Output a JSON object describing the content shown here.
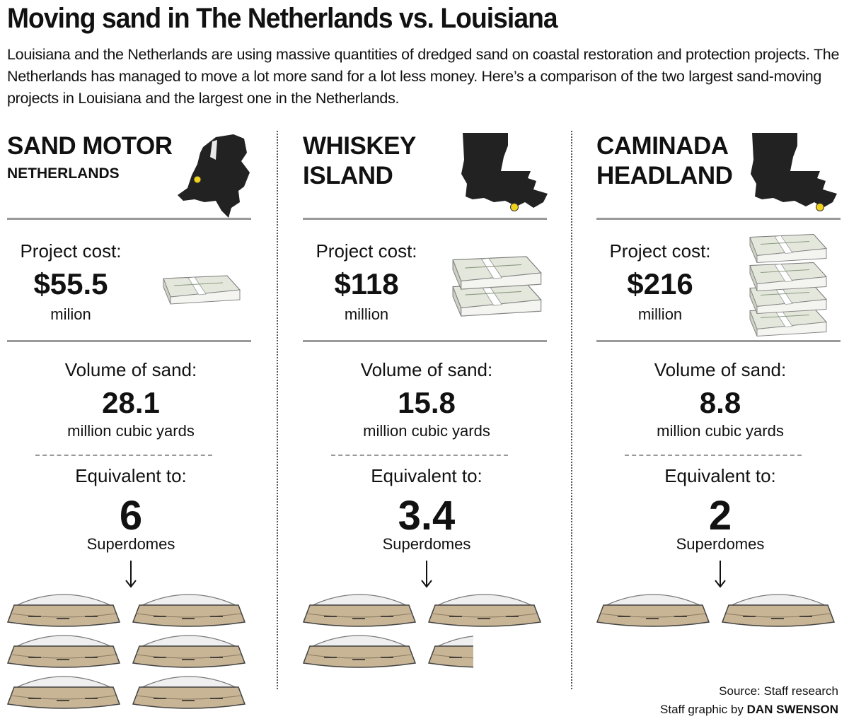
{
  "header": {
    "title": "Moving sand in The Netherlands vs. Louisiana",
    "description": "Louisiana and the Netherlands are using massive quantities of dredged sand on coastal restoration and protection projects. The Netherlands has managed to move a lot more sand for a lot less money. Here’s a comparison of the two largest sand-moving projects in Louisiana and the largest one in the Netherlands."
  },
  "columns": [
    {
      "name": [
        "SAND MOTOR"
      ],
      "region": "NETHERLANDS",
      "cost": {
        "label": "Project cost:",
        "value": "$55.5",
        "unit": "milion"
      },
      "volume": {
        "label": "Volume of sand:",
        "value": "28.1",
        "unit": "million cubic yards"
      },
      "equivalent": {
        "label": "Equivalent to:",
        "value": 6,
        "unit": "Superdomes"
      }
    },
    {
      "name": [
        "WHISKEY",
        "ISLAND"
      ],
      "cost": {
        "label": "Project cost:",
        "value": "$118",
        "unit": "million"
      },
      "volume": {
        "label": "Volume of sand:",
        "value": "15.8",
        "unit": "million cubic yards"
      },
      "equivalent": {
        "label": "Equivalent to:",
        "value": 3.4,
        "unit": "Superdomes"
      }
    },
    {
      "name": [
        "CAMINADA",
        "HEADLAND"
      ],
      "cost": {
        "label": "Project cost:",
        "value": "$216",
        "unit": "million"
      },
      "volume": {
        "label": "Volume of sand:",
        "value": "8.8",
        "unit": "million cubic yards"
      },
      "equivalent": {
        "label": "Equivalent to:",
        "value": 2,
        "unit": "Superdomes"
      }
    }
  ],
  "footer": {
    "source": "Source: Staff research",
    "credit": "Staff graphic by",
    "author": "DAN SWENSON"
  }
}
